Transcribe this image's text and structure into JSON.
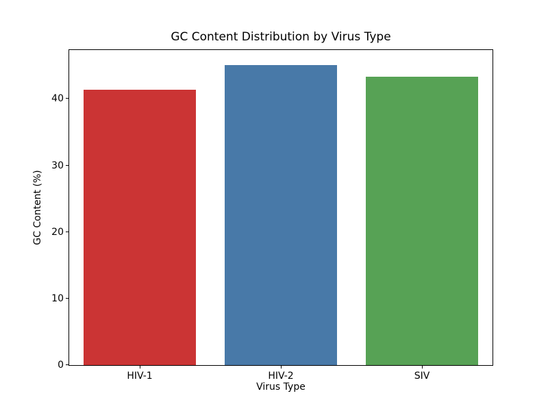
{
  "figure": {
    "background_color": "#ffffff",
    "axis_color": "#000000",
    "text_color": "#000000"
  },
  "chart_data": {
    "type": "bar",
    "title": "GC Content Distribution by Virus Type",
    "xlabel": "Virus Type",
    "ylabel": "GC Content (%)",
    "categories": [
      "HIV-1",
      "HIV-2",
      "SIV"
    ],
    "values": [
      41.4,
      45.1,
      43.3
    ],
    "bar_colors": [
      "#cb3434",
      "#4879a8",
      "#57a255"
    ],
    "ylim": [
      0,
      47.35
    ],
    "yticks": [
      0,
      10,
      20,
      30,
      40
    ],
    "bar_width_fraction": 0.8,
    "grid": false,
    "legend_position": "none"
  }
}
